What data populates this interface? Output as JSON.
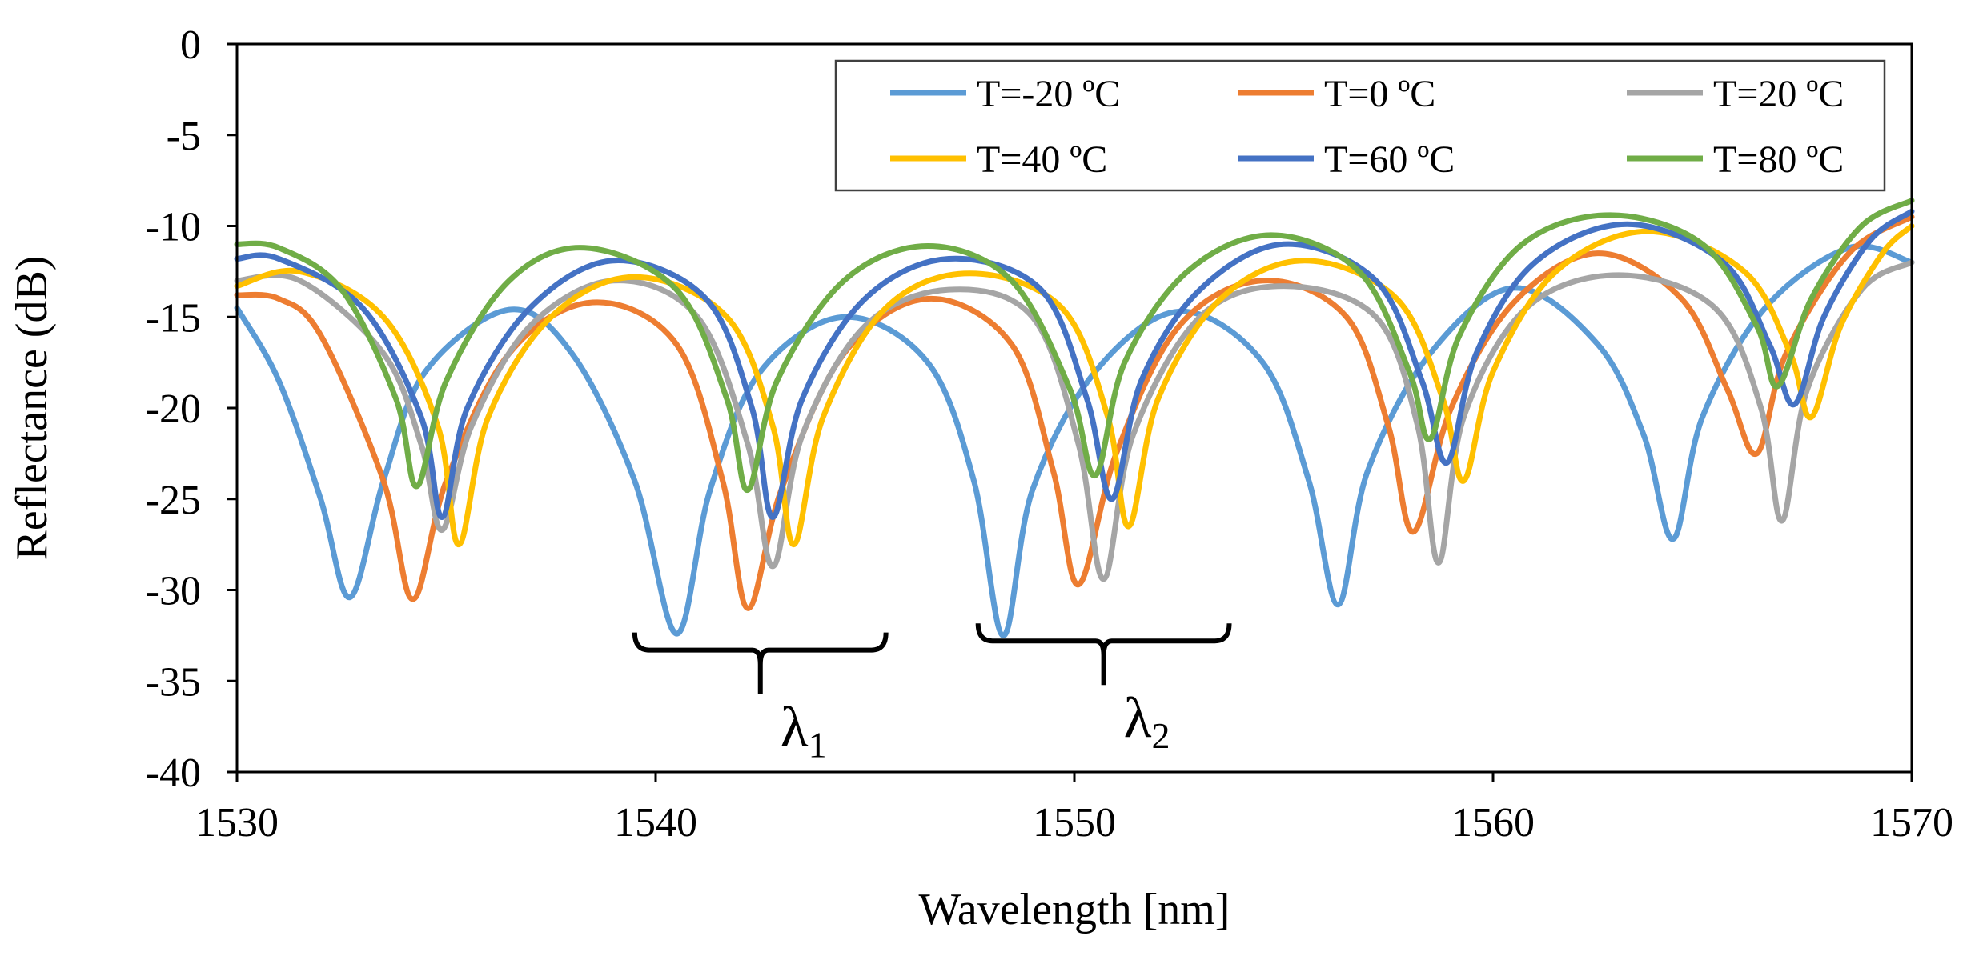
{
  "chart_data": {
    "type": "line",
    "title": "",
    "xlabel": "Wavelength [nm]",
    "ylabel": "Reflectance (dB)",
    "xlim": [
      1530,
      1570
    ],
    "ylim": [
      -40,
      0
    ],
    "xticks": [
      1530,
      1540,
      1550,
      1560,
      1570
    ],
    "yticks": [
      0,
      -5,
      -10,
      -15,
      -20,
      -25,
      -30,
      -35,
      -40
    ],
    "grid": false,
    "legend_position": "top-right",
    "series": [
      {
        "name": "T=-20 ºC",
        "color": "#5b9bd5",
        "x": [
          1530,
          1531,
          1532,
          1532.7,
          1533.5,
          1534.5,
          1536.5,
          1538,
          1539.5,
          1540.5,
          1541.3,
          1542.5,
          1544.5,
          1546.5,
          1547.6,
          1548.3,
          1549,
          1550.5,
          1552.5,
          1554.5,
          1555.6,
          1556.3,
          1557,
          1558.5,
          1560.5,
          1562.5,
          1563.6,
          1564.3,
          1565,
          1566.5,
          1568.5,
          1570
        ],
        "y": [
          -14.5,
          -18.5,
          -25,
          -30.4,
          -24,
          -18,
          -14.6,
          -17,
          -24,
          -32.4,
          -24.5,
          -18,
          -15,
          -17.5,
          -24,
          -32.5,
          -24.5,
          -18,
          -14.7,
          -17.5,
          -24,
          -30.8,
          -23.5,
          -17,
          -13.4,
          -16.5,
          -21.5,
          -27.2,
          -20.5,
          -14.5,
          -11.2,
          -12
        ]
      },
      {
        "name": "T=0 ºC",
        "color": "#ed7d31",
        "x": [
          1530,
          1531,
          1532,
          1533.5,
          1534.2,
          1535,
          1536.5,
          1538.5,
          1540.5,
          1541.6,
          1542.2,
          1543,
          1544.5,
          1546.5,
          1548.5,
          1549.5,
          1550.1,
          1551,
          1552.5,
          1554.5,
          1556.5,
          1557.5,
          1558.1,
          1559,
          1560.5,
          1562.5,
          1564.5,
          1565.6,
          1566.3,
          1567,
          1568.5,
          1570
        ],
        "y": [
          -13.8,
          -14,
          -16,
          -24,
          -30.5,
          -24,
          -17,
          -14.2,
          -16.5,
          -24,
          -31,
          -24.5,
          -17,
          -14,
          -16.5,
          -23.5,
          -29.7,
          -22.5,
          -15.5,
          -13,
          -15,
          -21,
          -26.8,
          -20,
          -14.2,
          -11.5,
          -14,
          -19,
          -22.5,
          -17,
          -11.5,
          -9.5
        ]
      },
      {
        "name": "T=20 ºC",
        "color": "#a5a5a5",
        "x": [
          1530,
          1531.5,
          1533.5,
          1534.4,
          1534.9,
          1535.6,
          1537,
          1539,
          1541,
          1542.2,
          1542.8,
          1543.5,
          1545,
          1547,
          1549,
          1550.1,
          1550.7,
          1551.4,
          1553,
          1555,
          1557.2,
          1558.2,
          1558.7,
          1559.3,
          1560.8,
          1563,
          1565.3,
          1566.4,
          1566.9,
          1567.5,
          1568.8,
          1570
        ],
        "y": [
          -13,
          -13,
          -17,
          -22,
          -26.7,
          -21,
          -15.5,
          -13,
          -15,
          -22,
          -28.7,
          -21.5,
          -15.5,
          -13.5,
          -15,
          -22,
          -29.4,
          -21.5,
          -15,
          -13.3,
          -15,
          -21,
          -28.5,
          -20.5,
          -14.5,
          -12.7,
          -14.5,
          -20,
          -26.2,
          -19,
          -13.5,
          -12
        ]
      },
      {
        "name": "T=40 ºC",
        "color": "#ffc000",
        "x": [
          1530,
          1531.5,
          1533.5,
          1534.8,
          1535.3,
          1536,
          1537.5,
          1539.5,
          1541.7,
          1542.8,
          1543.3,
          1544,
          1545.5,
          1547.5,
          1549.7,
          1550.8,
          1551.3,
          1552,
          1553.5,
          1555.5,
          1557.7,
          1558.8,
          1559.3,
          1560,
          1561.5,
          1563.7,
          1566,
          1567.1,
          1567.6,
          1568.3,
          1569.3,
          1570
        ],
        "y": [
          -13.3,
          -12.5,
          -15,
          -21,
          -27.5,
          -20.5,
          -15,
          -12.8,
          -15,
          -21,
          -27.5,
          -20.5,
          -14.5,
          -12.6,
          -14.5,
          -20.5,
          -26.5,
          -19.5,
          -14,
          -11.9,
          -14,
          -19.5,
          -24,
          -18,
          -12.5,
          -10.3,
          -12.5,
          -17,
          -20.5,
          -15.5,
          -11.5,
          -10
        ]
      },
      {
        "name": "T=60 ºC",
        "color": "#4472c4",
        "x": [
          1530,
          1531,
          1533,
          1534.4,
          1534.9,
          1535.5,
          1537,
          1539,
          1541.2,
          1542.3,
          1542.8,
          1543.5,
          1545,
          1547,
          1549.2,
          1550.3,
          1550.9,
          1551.6,
          1553,
          1555,
          1557.2,
          1558.3,
          1558.9,
          1559.6,
          1561,
          1563.2,
          1565.5,
          1566.6,
          1567.2,
          1567.9,
          1569,
          1570
        ],
        "y": [
          -11.8,
          -11.8,
          -14.5,
          -20.5,
          -26,
          -20,
          -14.5,
          -11.9,
          -14,
          -20,
          -26,
          -19.5,
          -14,
          -11.8,
          -13.5,
          -19.5,
          -25,
          -18.5,
          -13.5,
          -11,
          -13,
          -18.5,
          -23,
          -17,
          -12,
          -9.9,
          -12,
          -16.5,
          -19.8,
          -15,
          -10.8,
          -9.2
        ]
      },
      {
        "name": "T=80 ºC",
        "color": "#70ad47",
        "x": [
          1530,
          1531,
          1532.5,
          1533.8,
          1534.3,
          1535,
          1536.5,
          1538.3,
          1540.5,
          1541.7,
          1542.2,
          1542.9,
          1544.5,
          1546.5,
          1548.5,
          1549.9,
          1550.5,
          1551.2,
          1552.7,
          1554.7,
          1556.8,
          1558,
          1558.5,
          1559.2,
          1560.7,
          1562.8,
          1565,
          1566.3,
          1566.8,
          1567.6,
          1568.8,
          1570
        ],
        "y": [
          -11,
          -11.2,
          -13.5,
          -19.5,
          -24.3,
          -18.5,
          -13,
          -11.2,
          -13.5,
          -19.5,
          -24.5,
          -18.5,
          -13,
          -11.1,
          -13,
          -19,
          -23.7,
          -17.5,
          -12.5,
          -10.5,
          -12.5,
          -18,
          -21.7,
          -16,
          -11,
          -9.4,
          -11,
          -15.5,
          -18.8,
          -14,
          -10,
          -8.6
        ]
      }
    ],
    "annotations": [
      {
        "label": "λ",
        "subscript": "1",
        "span": [
          1539.5,
          1545.5
        ],
        "bracket_y": -33.3
      },
      {
        "label": "λ",
        "subscript": "2",
        "span": [
          1547.7,
          1553.7
        ],
        "bracket_y": -32.8
      }
    ]
  }
}
